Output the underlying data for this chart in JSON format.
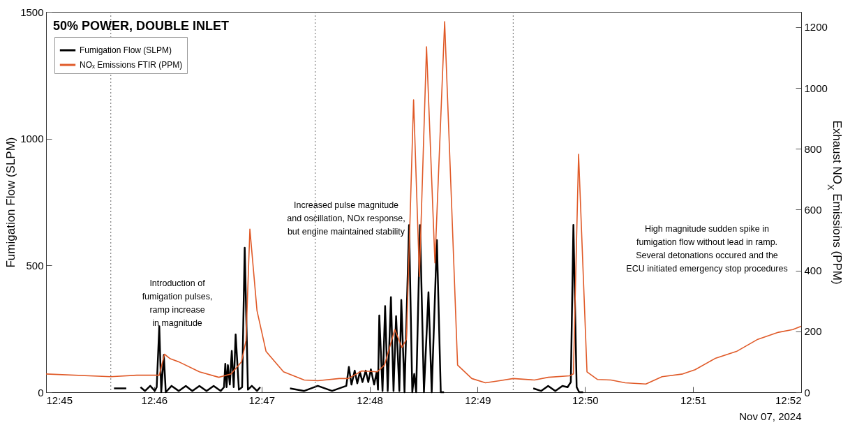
{
  "chart_data": {
    "type": "line",
    "title": "50% POWER, DOUBLE INLET",
    "xlabel": "Nov 07, 2024",
    "ylabel": "Fumigation Flow (SLPM)",
    "y2label": "Exhaust NO$_{X}$ Emissions (PPM)",
    "xlim": [
      12.75,
      12.8667
    ],
    "xticks": [
      {
        "value": 12.75,
        "label": "12:45"
      },
      {
        "value": 12.7667,
        "label": "12:46"
      },
      {
        "value": 12.7833,
        "label": "12:47"
      },
      {
        "value": 12.8,
        "label": "12:48"
      },
      {
        "value": 12.8167,
        "label": "12:49"
      },
      {
        "value": 12.8333,
        "label": "12:50"
      },
      {
        "value": 12.85,
        "label": "12:51"
      },
      {
        "value": 12.8667,
        "label": "12:52"
      }
    ],
    "ylim": [
      0,
      1500
    ],
    "yticks": [
      0,
      500,
      1000,
      1500
    ],
    "y2lim": [
      0,
      1250
    ],
    "y2ticks": [
      0,
      200,
      400,
      600,
      800,
      1000,
      1200
    ],
    "legend": "top left",
    "grid": false,
    "series": [
      {
        "name": "Fumigation Flow (SLPM)",
        "color": "#000000",
        "x": [
          12.7605,
          12.7624,
          12.7629,
          12.7646,
          12.7653,
          12.7661,
          12.7668,
          12.7671,
          12.7675,
          12.7678,
          12.7682,
          12.7685,
          12.7694,
          12.7705,
          12.7716,
          12.7726,
          12.7737,
          12.7748,
          12.7759,
          12.777,
          12.7775,
          12.7777,
          12.7779,
          12.7781,
          12.7784,
          12.7787,
          12.779,
          12.7793,
          12.7798,
          12.7803,
          12.7807,
          12.7812,
          12.7818,
          12.7826,
          12.7831,
          12.7834,
          12.7877,
          12.7899,
          12.792,
          12.7942,
          12.7964,
          12.7968,
          12.7972,
          12.7977,
          12.7981,
          12.7985,
          12.7989,
          12.7994,
          12.7998,
          12.8002,
          12.8007,
          12.8011,
          12.8013,
          12.8015,
          12.802,
          12.8024,
          12.8028,
          12.8033,
          12.8037,
          12.8041,
          12.8046,
          12.8049,
          12.8054,
          12.8061,
          12.8066,
          12.8069,
          12.8072,
          12.8078,
          12.8084,
          12.8091,
          12.8096,
          12.8104,
          12.811,
          12.8115,
          12.812,
          12.8253,
          12.8265,
          12.8276,
          12.8287,
          12.8298,
          12.8306,
          12.8311,
          12.8315,
          12.832,
          12.8324,
          12.833
        ],
        "values": [
          15,
          15,
          null,
          20,
          5,
          25,
          5,
          20,
          260,
          0,
          147,
          0,
          25,
          5,
          25,
          5,
          25,
          5,
          25,
          5,
          20,
          112,
          20,
          107,
          30,
          163,
          20,
          228,
          10,
          20,
          570,
          10,
          25,
          5,
          20,
          null,
          15,
          5,
          25,
          5,
          25,
          100,
          30,
          85,
          35,
          80,
          40,
          85,
          40,
          90,
          30,
          80,
          10,
          303,
          5,
          340,
          5,
          375,
          5,
          300,
          5,
          364,
          0,
          659,
          0,
          72,
          0,
          659,
          0,
          394,
          0,
          600,
          0,
          0,
          null,
          15,
          5,
          25,
          5,
          25,
          20,
          40,
          660,
          20,
          0,
          0
        ]
      },
      {
        "name": "NOₓ Emissions FTIR (PPM)",
        "color": "#e05a28",
        "axis": "y2",
        "x": [
          12.75,
          12.76,
          12.764,
          12.7675,
          12.7683,
          12.7692,
          12.7705,
          12.7737,
          12.7767,
          12.7786,
          12.7802,
          12.7809,
          12.7815,
          12.7826,
          12.784,
          12.7867,
          12.7899,
          12.792,
          12.7953,
          12.7967,
          12.7988,
          12.8012,
          12.8023,
          12.8039,
          12.805,
          12.8057,
          12.8068,
          12.8077,
          12.8088,
          12.8101,
          12.8116,
          12.8127,
          12.8136,
          12.8158,
          12.8179,
          12.8201,
          12.8222,
          12.8255,
          12.8276,
          12.8309,
          12.8315,
          12.8323,
          12.8336,
          12.8352,
          12.8373,
          12.8395,
          12.8427,
          12.8452,
          12.8484,
          12.8503,
          12.8535,
          12.8567,
          12.86,
          12.8632,
          12.8654,
          12.8667
        ],
        "values": [
          60,
          51,
          56,
          56,
          125,
          110,
          100,
          67,
          49,
          60,
          100,
          170,
          536,
          268,
          134,
          67,
          40,
          38,
          45,
          45,
          70,
          67,
          89,
          206,
          147,
          174,
          961,
          380,
          1135,
          425,
          1218,
          603,
          89,
          45,
          31,
          38,
          45,
          40,
          49,
          54,
          60,
          782,
          67,
          42,
          40,
          31,
          27,
          51,
          60,
          74,
          112,
          134,
          174,
          197,
          206,
          217
        ]
      }
    ],
    "ref_lines": [
      {
        "axis": "x",
        "value": 12.76,
        "line_style": "dotted",
        "color": "#808080"
      },
      {
        "axis": "x",
        "value": 12.7916,
        "line_style": "dotted",
        "color": "#808080"
      },
      {
        "axis": "x",
        "value": 12.8222,
        "line_style": "dotted",
        "color": "#808080"
      }
    ],
    "annotations": [
      "Introduction of\nfumigation pulses,\nramp increase\nin magnitude",
      "Increased pulse magnitude\nand oscillation, NOx response,\nbut engine maintained stability",
      "High magnitude sudden spike in\nfumigation flow without lead in ramp.\nSeveral detonations occured and the\nECU initiated emergency stop procedures"
    ]
  }
}
